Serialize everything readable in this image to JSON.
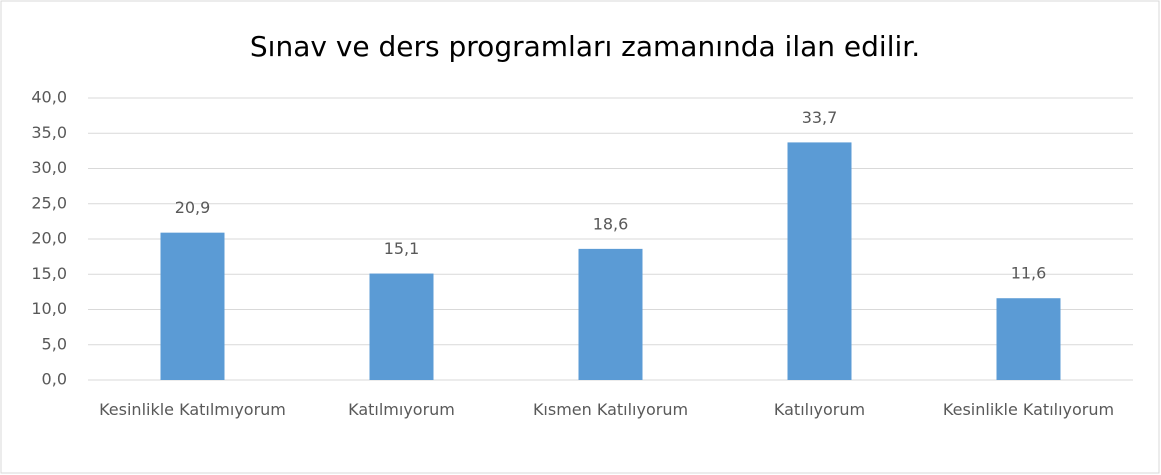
{
  "chart_data": {
    "type": "bar",
    "title": "Sınav ve ders programları zamanında ilan edilir.",
    "categories": [
      "Kesinlikle Katılmıyorum",
      "Katılmıyorum",
      "Kısmen Katılıyorum",
      "Katılıyorum",
      "Kesinlikle Katılıyorum"
    ],
    "values": [
      20.9,
      15.1,
      18.6,
      33.7,
      11.6
    ],
    "value_labels": [
      "20,9",
      "15,1",
      "18,6",
      "33,7",
      "11,6"
    ],
    "color": "#5b9bd5",
    "ylim": [
      0,
      40
    ],
    "yticks": [
      {
        "value": 0,
        "label": "0,0"
      },
      {
        "value": 5,
        "label": "5,0"
      },
      {
        "value": 10,
        "label": "10,0"
      },
      {
        "value": 15,
        "label": "15,0"
      },
      {
        "value": 20,
        "label": "20,0"
      },
      {
        "value": 25,
        "label": "25,0"
      },
      {
        "value": 30,
        "label": "30,0"
      },
      {
        "value": 35,
        "label": "35,0"
      },
      {
        "value": 40,
        "label": "40,0"
      }
    ],
    "grid": true
  }
}
